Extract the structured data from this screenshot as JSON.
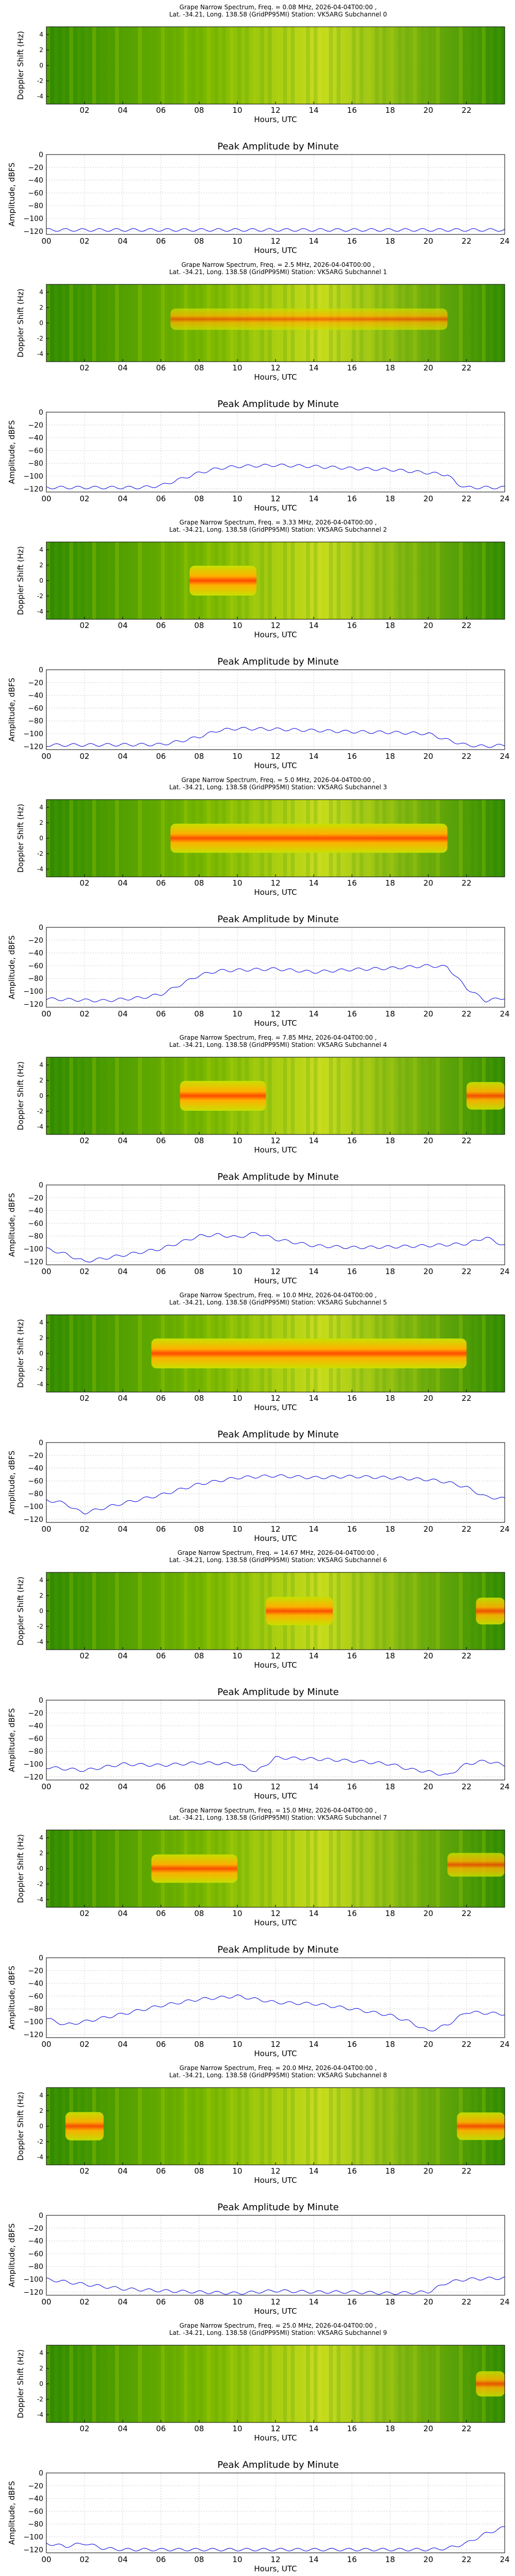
{
  "page": {
    "background": "#ffffff"
  },
  "spectrogram_common": {
    "title_line2": "Lat. -34.21, Long. 138.58 (GridPP95MI) Station: VK5ARG",
    "ylabel": "Doppler Shift (Hz)",
    "xlabel": "Hours, UTC",
    "x_ticks": [
      "02",
      "04",
      "06",
      "08",
      "10",
      "12",
      "14",
      "16",
      "18",
      "20",
      "22"
    ],
    "y_ticks": [
      "4",
      "2",
      "0",
      "-2",
      "-4"
    ],
    "colormap": [
      "#1e7a00",
      "#4a9a00",
      "#9ccc00",
      "#e6e600",
      "#ffb000",
      "#ff4000"
    ]
  },
  "amplitude_common": {
    "title": "Peak Amplitude by Minute",
    "ylabel": "Amplitude, dBFS",
    "xlabel": "Hours, UTC",
    "x_ticks": [
      "00",
      "02",
      "04",
      "06",
      "08",
      "10",
      "12",
      "14",
      "16",
      "18",
      "20",
      "22",
      "24"
    ],
    "y_ticks": [
      "0",
      "−20",
      "−40",
      "−60",
      "−80",
      "−100",
      "−120"
    ],
    "line_color": "#0000dd"
  },
  "chart_data": [
    {
      "type": "heatmap",
      "title": "Grape Narrow Spectrum, Freq. = 0.08 MHz, 2026-04-04T00:00 ,",
      "subtitle": "Lat. -34.21, Long. 138.58 (GridPP95MI) Station: VK5ARG Subchannel 0",
      "xlabel": "Hours, UTC",
      "ylabel": "Doppler Shift (Hz)",
      "xlim": [
        0,
        24
      ],
      "ylim": [
        -5,
        5
      ],
      "bands": []
    },
    {
      "type": "line",
      "title": "Peak Amplitude by Minute",
      "xlabel": "Hours, UTC",
      "ylabel": "Amplitude, dBFS",
      "xlim": [
        0,
        24
      ],
      "ylim": [
        -125,
        0
      ],
      "grid": true,
      "x": [
        0,
        24
      ],
      "y": [
        -118,
        -118
      ]
    },
    {
      "type": "heatmap",
      "title": "Grape Narrow Spectrum, Freq. = 2.5 MHz, 2026-04-04T00:00 ,",
      "subtitle": "Lat. -34.21, Long. 138.58 (GridPP95MI) Station: VK5ARG Subchannel 1",
      "xlabel": "Hours, UTC",
      "ylabel": "Doppler Shift (Hz)",
      "xlim": [
        0,
        24
      ],
      "ylim": [
        -5,
        5
      ],
      "bands": [
        {
          "x0": 6.5,
          "x1": 21,
          "y": 0.5,
          "intensity": 0.45
        }
      ]
    },
    {
      "type": "line",
      "title": "Peak Amplitude by Minute",
      "xlabel": "Hours, UTC",
      "ylabel": "Amplitude, dBFS",
      "xlim": [
        0,
        24
      ],
      "ylim": [
        -125,
        0
      ],
      "grid": true,
      "x": [
        0,
        5,
        6,
        7,
        8,
        9,
        10,
        12,
        14,
        16,
        18,
        20,
        21,
        21.5,
        22,
        24
      ],
      "y": [
        -118,
        -118,
        -115,
        -105,
        -95,
        -88,
        -85,
        -83,
        -85,
        -88,
        -90,
        -95,
        -98,
        -112,
        -118,
        -118
      ]
    },
    {
      "type": "heatmap",
      "title": "Grape Narrow Spectrum, Freq. = 3.33 MHz, 2026-04-04T00:00 ,",
      "subtitle": "Lat. -34.21, Long. 138.58 (GridPP95MI) Station: VK5ARG Subchannel 2",
      "xlabel": "Hours, UTC",
      "ylabel": "Doppler Shift (Hz)",
      "xlim": [
        0,
        24
      ],
      "ylim": [
        -5,
        5
      ],
      "bands": [
        {
          "x0": 7.5,
          "x1": 11,
          "y": 0,
          "intensity": 1.0
        }
      ]
    },
    {
      "type": "line",
      "title": "Peak Amplitude by Minute",
      "xlabel": "Hours, UTC",
      "ylabel": "Amplitude, dBFS",
      "xlim": [
        0,
        24
      ],
      "ylim": [
        -125,
        0
      ],
      "grid": true,
      "x": [
        0,
        6,
        7,
        8,
        9,
        10,
        12,
        14,
        16,
        18,
        20,
        21,
        22,
        23,
        24
      ],
      "y": [
        -118,
        -117,
        -112,
        -105,
        -95,
        -92,
        -93,
        -95,
        -97,
        -98,
        -100,
        -110,
        -118,
        -120,
        -118
      ]
    },
    {
      "type": "heatmap",
      "title": "Grape Narrow Spectrum, Freq. = 5.0 MHz, 2026-04-04T00:00 ,",
      "subtitle": "Lat. -34.21, Long. 138.58 (GridPP95MI) Station: VK5ARG Subchannel 3",
      "xlabel": "Hours, UTC",
      "ylabel": "Doppler Shift (Hz)",
      "xlim": [
        0,
        24
      ],
      "ylim": [
        -5,
        5
      ],
      "bands": [
        {
          "x0": 6.5,
          "x1": 21,
          "y": 0,
          "intensity": 0.95
        }
      ]
    },
    {
      "type": "line",
      "title": "Peak Amplitude by Minute",
      "xlabel": "Hours, UTC",
      "ylabel": "Amplitude, dBFS",
      "xlim": [
        0,
        24
      ],
      "ylim": [
        -125,
        0
      ],
      "grid": true,
      "x": [
        0,
        3,
        5,
        6,
        7,
        8,
        9,
        12,
        14,
        16,
        18,
        20,
        21,
        22,
        23,
        24
      ],
      "y": [
        -112,
        -115,
        -110,
        -105,
        -90,
        -75,
        -68,
        -65,
        -70,
        -66,
        -64,
        -60,
        -62,
        -95,
        -115,
        -110
      ]
    },
    {
      "type": "heatmap",
      "title": "Grape Narrow Spectrum, Freq. = 7.85 MHz, 2026-04-04T00:00 ,",
      "subtitle": "Lat. -34.21, Long. 138.58 (GridPP95MI) Station: VK5ARG Subchannel 4",
      "xlabel": "Hours, UTC",
      "ylabel": "Doppler Shift (Hz)",
      "xlim": [
        0,
        24
      ],
      "ylim": [
        -5,
        5
      ],
      "bands": [
        {
          "x0": 7,
          "x1": 11.5,
          "y": 0,
          "intensity": 1.0
        },
        {
          "x0": 22,
          "x1": 24,
          "y": 0,
          "intensity": 0.85
        }
      ]
    },
    {
      "type": "line",
      "title": "Peak Amplitude by Minute",
      "xlabel": "Hours, UTC",
      "ylabel": "Amplitude, dBFS",
      "xlim": [
        0,
        24
      ],
      "ylim": [
        -125,
        0
      ],
      "grid": true,
      "x": [
        0,
        1,
        2,
        4,
        6,
        8,
        9,
        10,
        11,
        12,
        14,
        16,
        18,
        20,
        22,
        23,
        24
      ],
      "y": [
        -100,
        -108,
        -120,
        -110,
        -100,
        -80,
        -78,
        -82,
        -75,
        -85,
        -95,
        -98,
        -97,
        -95,
        -92,
        -82,
        -95
      ]
    },
    {
      "type": "heatmap",
      "title": "Grape Narrow Spectrum, Freq. = 10.0 MHz, 2026-04-04T00:00 ,",
      "subtitle": "Lat. -34.21, Long. 138.58 (GridPP95MI) Station: VK5ARG Subchannel 5",
      "xlabel": "Hours, UTC",
      "ylabel": "Doppler Shift (Hz)",
      "xlim": [
        0,
        24
      ],
      "ylim": [
        -5,
        5
      ],
      "bands": [
        {
          "x0": 5.5,
          "x1": 22,
          "y": 0,
          "intensity": 1.0
        }
      ]
    },
    {
      "type": "line",
      "title": "Peak Amplitude by Minute",
      "xlabel": "Hours, UTC",
      "ylabel": "Amplitude, dBFS",
      "xlim": [
        0,
        24
      ],
      "ylim": [
        -125,
        0
      ],
      "grid": true,
      "x": [
        0,
        1,
        1.5,
        2,
        4,
        6,
        8,
        10,
        12,
        14,
        16,
        18,
        20,
        21,
        22,
        23,
        24
      ],
      "y": [
        -90,
        -95,
        -105,
        -110,
        -95,
        -82,
        -65,
        -55,
        -52,
        -55,
        -53,
        -55,
        -58,
        -62,
        -70,
        -85,
        -88
      ]
    },
    {
      "type": "heatmap",
      "title": "Grape Narrow Spectrum, Freq. = 14.67 MHz, 2026-04-04T00:00 ,",
      "subtitle": "Lat. -34.21, Long. 138.58 (GridPP95MI) Station: VK5ARG Subchannel 6",
      "xlabel": "Hours, UTC",
      "ylabel": "Doppler Shift (Hz)",
      "xlim": [
        0,
        24
      ],
      "ylim": [
        -5,
        5
      ],
      "bands": [
        {
          "x0": 11.5,
          "x1": 15,
          "y": 0,
          "intensity": 0.9
        },
        {
          "x0": 22.5,
          "x1": 24,
          "y": 0,
          "intensity": 0.8
        }
      ]
    },
    {
      "type": "line",
      "title": "Peak Amplitude by Minute",
      "xlabel": "Hours, UTC",
      "ylabel": "Amplitude, dBFS",
      "xlim": [
        0,
        24
      ],
      "ylim": [
        -125,
        0
      ],
      "grid": true,
      "x": [
        0,
        2,
        4,
        6,
        8,
        10,
        11,
        12,
        14,
        16,
        18,
        19,
        20,
        21,
        22,
        23,
        24
      ],
      "y": [
        -105,
        -110,
        -100,
        -102,
        -98,
        -100,
        -112,
        -90,
        -92,
        -95,
        -100,
        -108,
        -112,
        -118,
        -100,
        -95,
        -102
      ]
    },
    {
      "type": "heatmap",
      "title": "Grape Narrow Spectrum, Freq. = 15.0 MHz, 2026-04-04T00:00 ,",
      "subtitle": "Lat. -34.21, Long. 138.58 (GridPP95MI) Station: VK5ARG Subchannel 7",
      "xlabel": "Hours, UTC",
      "ylabel": "Doppler Shift (Hz)",
      "xlim": [
        0,
        24
      ],
      "ylim": [
        -5,
        5
      ],
      "bands": [
        {
          "x0": 5.5,
          "x1": 10,
          "y": 0,
          "intensity": 0.9
        },
        {
          "x0": 21,
          "x1": 24,
          "y": 0.5,
          "intensity": 0.6
        }
      ]
    },
    {
      "type": "line",
      "title": "Peak Amplitude by Minute",
      "xlabel": "Hours, UTC",
      "ylabel": "Amplitude, dBFS",
      "xlim": [
        0,
        24
      ],
      "ylim": [
        -125,
        0
      ],
      "grid": true,
      "x": [
        0,
        1,
        2,
        4,
        6,
        8,
        10,
        12,
        14,
        16,
        18,
        19,
        20,
        21,
        22,
        24
      ],
      "y": [
        -95,
        -105,
        -100,
        -88,
        -75,
        -65,
        -60,
        -70,
        -72,
        -80,
        -90,
        -100,
        -115,
        -105,
        -85,
        -88
      ]
    },
    {
      "type": "heatmap",
      "title": "Grape Narrow Spectrum, Freq. = 20.0 MHz, 2026-04-04T00:00 ,",
      "subtitle": "Lat. -34.21, Long. 138.58 (GridPP95MI) Station: VK5ARG Subchannel 8",
      "xlabel": "Hours, UTC",
      "ylabel": "Doppler Shift (Hz)",
      "xlim": [
        0,
        24
      ],
      "ylim": [
        -5,
        5
      ],
      "bands": [
        {
          "x0": 1,
          "x1": 3,
          "y": 0,
          "intensity": 0.9
        },
        {
          "x0": 21.5,
          "x1": 24,
          "y": 0,
          "intensity": 0.85
        }
      ]
    },
    {
      "type": "line",
      "title": "Peak Amplitude by Minute",
      "xlabel": "Hours, UTC",
      "ylabel": "Amplitude, dBFS",
      "xlim": [
        0,
        24
      ],
      "ylim": [
        -125,
        0
      ],
      "grid": true,
      "x": [
        0,
        2,
        4,
        6,
        8,
        10,
        12,
        14,
        16,
        18,
        20,
        21,
        22,
        24
      ],
      "y": [
        -100,
        -108,
        -115,
        -118,
        -120,
        -122,
        -118,
        -120,
        -120,
        -122,
        -120,
        -105,
        -100,
        -98
      ]
    },
    {
      "type": "heatmap",
      "title": "Grape Narrow Spectrum, Freq. = 25.0 MHz, 2026-04-04T00:00 ,",
      "subtitle": "Lat. -34.21, Long. 138.58 (GridPP95MI) Station: VK5ARG Subchannel 9",
      "xlabel": "Hours, UTC",
      "ylabel": "Doppler Shift (Hz)",
      "xlim": [
        0,
        24
      ],
      "ylim": [
        -5,
        5
      ],
      "bands": [
        {
          "x0": 22.5,
          "x1": 24,
          "y": 0,
          "intensity": 0.7
        }
      ]
    },
    {
      "type": "line",
      "title": "Peak Amplitude by Minute",
      "xlabel": "Hours, UTC",
      "ylabel": "Amplitude, dBFS",
      "xlim": [
        0,
        24
      ],
      "ylim": [
        -125,
        0
      ],
      "grid": true,
      "x": [
        0,
        1,
        2,
        3,
        4,
        6,
        8,
        10,
        12,
        14,
        16,
        18,
        20,
        21,
        22,
        23,
        24
      ],
      "y": [
        -110,
        -115,
        -110,
        -118,
        -120,
        -120,
        -120,
        -120,
        -120,
        -120,
        -120,
        -120,
        -120,
        -118,
        -110,
        -95,
        -85
      ]
    }
  ]
}
